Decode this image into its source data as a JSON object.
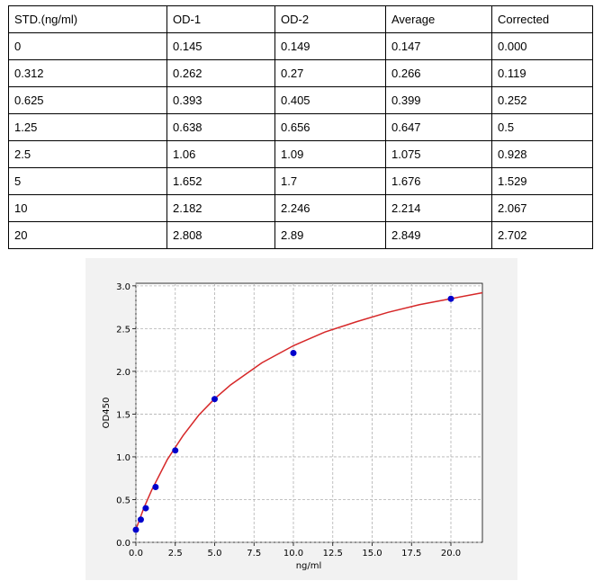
{
  "table": {
    "header": [
      "STD.(ng/ml)",
      "OD-1",
      "OD-2",
      "Average",
      "Corrected"
    ],
    "rows": [
      [
        "0",
        "0.145",
        "0.149",
        "0.147",
        "0.000"
      ],
      [
        "0.312",
        "0.262",
        "0.27",
        "0.266",
        "0.119"
      ],
      [
        "0.625",
        "0.393",
        "0.405",
        "0.399",
        "0.252"
      ],
      [
        "1.25",
        "0.638",
        "0.656",
        "0.647",
        "0.5"
      ],
      [
        "2.5",
        "1.06",
        "1.09",
        "1.075",
        "0.928"
      ],
      [
        "5",
        "1.652",
        "1.7",
        "1.676",
        "1.529"
      ],
      [
        "10",
        "2.182",
        "2.246",
        "2.214",
        "2.067"
      ],
      [
        "20",
        "2.808",
        "2.89",
        "2.849",
        "2.702"
      ]
    ]
  },
  "chart_data": {
    "type": "scatter",
    "x_label": "ng/ml",
    "y_label": "OD450",
    "series": [
      {
        "style": "points",
        "color": "#0000cc",
        "x": [
          0,
          0.312,
          0.625,
          1.25,
          2.5,
          5,
          10,
          20
        ],
        "values": [
          0.147,
          0.266,
          0.399,
          0.647,
          1.075,
          1.676,
          2.214,
          2.849
        ]
      },
      {
        "style": "line",
        "color": "#d62728",
        "x": [
          0,
          0.5,
          1,
          2,
          3,
          4,
          5,
          6,
          8,
          10,
          12,
          14,
          16,
          18,
          20,
          22
        ],
        "values": [
          0.15,
          0.4,
          0.61,
          0.97,
          1.25,
          1.49,
          1.68,
          1.84,
          2.1,
          2.3,
          2.46,
          2.58,
          2.69,
          2.78,
          2.85,
          2.92
        ]
      }
    ],
    "xlim": [
      0,
      22
    ],
    "ylim": [
      0,
      3.03
    ],
    "xticks": [
      {
        "value": 0,
        "label": "0.0"
      },
      2.5,
      {
        "value": 5,
        "label": "5.0"
      },
      7.5,
      {
        "value": 10,
        "label": "10.0"
      },
      12.5,
      {
        "value": 15,
        "label": "15.0"
      },
      17.5,
      {
        "value": 20,
        "label": "20.0"
      }
    ],
    "yticks": [
      {
        "value": 0,
        "label": "0.0"
      },
      0.5,
      {
        "value": 1,
        "label": "1.0"
      },
      1.5,
      {
        "value": 2,
        "label": "2.0"
      },
      2.5,
      {
        "value": 3,
        "label": "3.0"
      }
    ],
    "grid": true
  }
}
